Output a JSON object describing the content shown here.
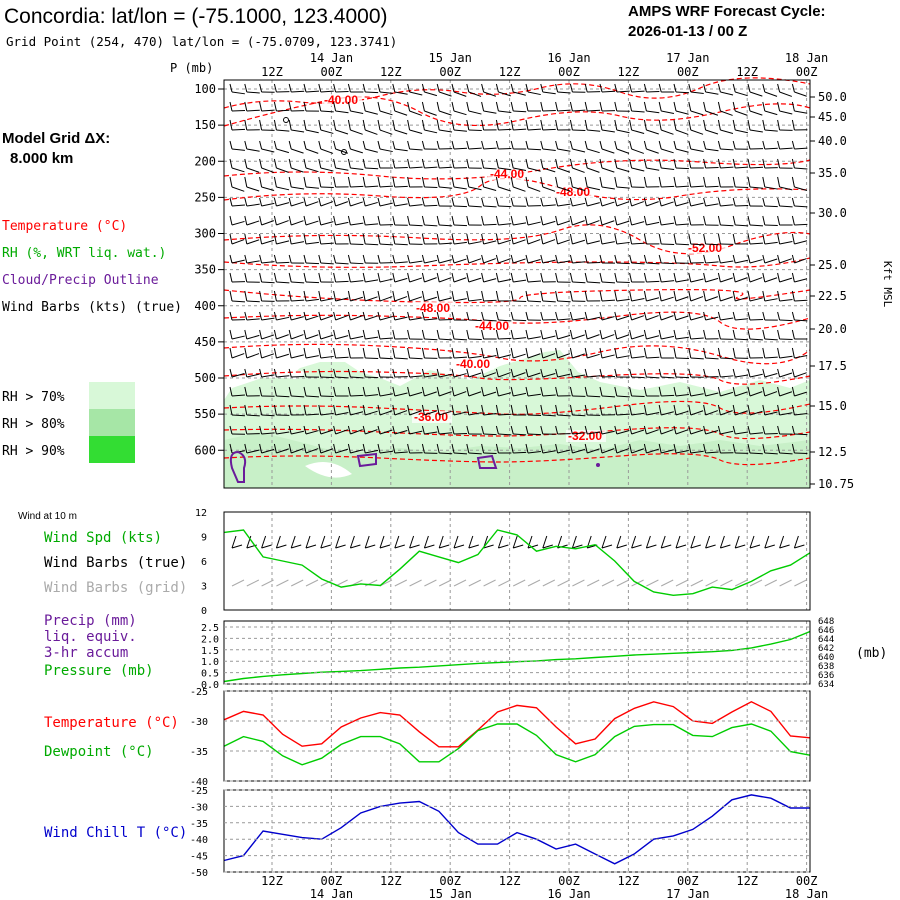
{
  "header": {
    "station_title": "Concordia:  lat/lon = (-75.1000, 123.4000)",
    "grid_point": "Grid Point (254, 470) lat/lon = (-75.0709, 123.3741)",
    "cycle_label": "AMPS WRF Forecast Cycle:",
    "cycle_value": "2026-01-13 / 00  Z"
  },
  "colors": {
    "temperature": "#ff0000",
    "dewpoint": "#00cc00",
    "windchill": "#0000cc",
    "precip": "#6a1b9a",
    "rh70": "#d8f8d8",
    "rh80": "#a6e6a6",
    "rh90": "#33dd33"
  },
  "legend": {
    "model_grid_label": "Model Grid ΔX:",
    "model_grid_value": "8.000 km",
    "temperature": "Temperature (°C)",
    "rh": "RH (%, WRT liq. wat.)",
    "cloud": "Cloud/Precip Outline",
    "wind_barbs": "Wind Barbs (kts) (true)",
    "rh70": "RH > 70%",
    "rh80": "RH > 80%",
    "rh90": "RH > 90%"
  },
  "time_axis": {
    "hour_labels": [
      "12Z",
      "00Z",
      "12Z",
      "00Z",
      "12Z",
      "00Z",
      "12Z",
      "00Z",
      "12Z",
      "00Z"
    ],
    "day_labels": [
      "14 Jan",
      "15 Jan",
      "16 Jan",
      "17 Jan",
      "18 Jan"
    ]
  },
  "chart_data": [
    {
      "type": "time-height cross-section",
      "ylabel": "P (mb)",
      "y2label": "Kft MSL",
      "pressure_ticks": [
        100,
        150,
        200,
        250,
        300,
        350,
        400,
        450,
        500,
        550,
        600
      ],
      "height_ticks_kft": [
        "50.0",
        "45.0",
        "40.0",
        "35.0",
        "30.0",
        "25.0",
        "22.5",
        "20.0",
        "17.5",
        "15.0",
        "12.5",
        "10.75"
      ],
      "temperature_contour_labels": [
        "-40.00",
        "-44.00",
        "-48.00",
        "-52.00",
        "-48.00",
        "-44.00",
        "-40.00",
        "-36.00",
        "-32.00"
      ]
    },
    {
      "type": "line",
      "panel_title": "Wind at 10 m",
      "series_labels": [
        "Wind Spd (kts)",
        "Wind Barbs (true)",
        "Wind Barbs (grid)"
      ],
      "y_ticks": [
        "12",
        "9",
        "6",
        "3",
        "0"
      ],
      "ylim": [
        0,
        12
      ],
      "series": [
        {
          "name": "Wind Spd (kts)",
          "values": [
            9.5,
            9.8,
            6.5,
            6.0,
            5.5,
            3.8,
            2.8,
            3.2,
            3.0,
            5.0,
            7.2,
            6.5,
            5.8,
            6.8,
            9.8,
            9.2,
            7.2,
            7.8,
            7.5,
            8.0,
            6.0,
            3.5,
            2.2,
            1.8,
            2.0,
            2.8,
            2.5,
            3.5,
            4.8,
            5.5,
            7.0
          ]
        }
      ]
    },
    {
      "type": "line",
      "series_labels": [
        "Precip (mm)",
        "liq. equiv.",
        "3-hr accum",
        "Pressure (mb)"
      ],
      "y_ticks": [
        "2.5",
        "2.0",
        "1.5",
        "1.0",
        "0.5",
        "0.0"
      ],
      "y2_ticks": [
        "648",
        "646",
        "644",
        "642",
        "640",
        "638",
        "636",
        "634"
      ],
      "y2label": "(mb)",
      "ylim": [
        0,
        2.5
      ],
      "y2lim": [
        634,
        649
      ],
      "series": [
        {
          "name": "Pressure (mb)",
          "values": [
            634.6,
            635.3,
            635.8,
            636.2,
            636.5,
            636.8,
            637.0,
            637.2,
            637.5,
            637.8,
            638.0,
            638.3,
            638.6,
            638.9,
            639.1,
            639.3,
            639.5,
            639.8,
            640.0,
            640.3,
            640.6,
            640.9,
            641.1,
            641.3,
            641.5,
            641.7,
            642.0,
            642.6,
            643.5,
            644.6,
            646.5
          ]
        }
      ]
    },
    {
      "type": "line",
      "series_labels": [
        "Temperature (°C)",
        "Dewpoint (°C)"
      ],
      "y_ticks": [
        "-25",
        "-30",
        "-35",
        "-40"
      ],
      "ylim": [
        -40,
        -25
      ],
      "series": [
        {
          "name": "Temperature (°C)",
          "values": [
            -29.8,
            -28.4,
            -29.0,
            -32.2,
            -34.2,
            -33.8,
            -31.0,
            -29.5,
            -28.6,
            -29.0,
            -31.8,
            -34.3,
            -34.3,
            -31.5,
            -28.5,
            -27.4,
            -27.8,
            -31.0,
            -33.8,
            -33.0,
            -29.6,
            -27.9,
            -26.8,
            -27.6,
            -30.0,
            -30.4,
            -28.5,
            -26.8,
            -28.4,
            -32.5,
            -32.8
          ]
        },
        {
          "name": "Dewpoint (°C)",
          "values": [
            -34.2,
            -32.6,
            -33.4,
            -35.8,
            -37.3,
            -36.2,
            -33.9,
            -32.6,
            -32.6,
            -33.8,
            -36.8,
            -36.8,
            -34.6,
            -31.6,
            -30.5,
            -30.5,
            -32.4,
            -35.6,
            -36.8,
            -35.6,
            -32.6,
            -30.9,
            -30.6,
            -30.6,
            -32.4,
            -32.6,
            -31.1,
            -30.5,
            -31.7,
            -35.1,
            -35.7
          ]
        }
      ]
    },
    {
      "type": "line",
      "series_labels": [
        "Wind Chill T (°C)"
      ],
      "y_ticks": [
        "-25",
        "-30",
        "-35",
        "-40",
        "-45",
        "-50"
      ],
      "ylim": [
        -50,
        -25
      ],
      "series": [
        {
          "name": "Wind Chill T (°C)",
          "values": [
            -46.5,
            -45.0,
            -37.5,
            -38.5,
            -39.5,
            -40.0,
            -36.5,
            -32.0,
            -30.0,
            -29.0,
            -28.5,
            -31.5,
            -38.0,
            -41.5,
            -41.5,
            -38.0,
            -40.0,
            -43.0,
            -41.5,
            -44.5,
            -47.5,
            -44.5,
            -40.0,
            -39.0,
            -37.0,
            -33.0,
            -28.0,
            -26.5,
            -27.5,
            -30.5,
            -30.5
          ]
        }
      ]
    }
  ]
}
